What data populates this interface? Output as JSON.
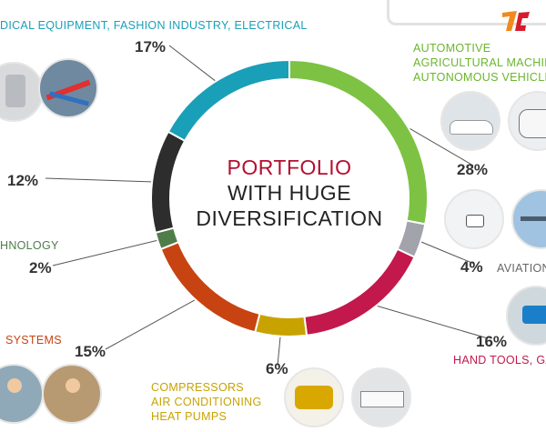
{
  "center_title": {
    "line1": "PORTFOLIO",
    "line2": "WITH HUGE",
    "line3": "DIVERSIFICATION"
  },
  "colors": {
    "accent": "#b3102f",
    "automotive": "#7dc242",
    "aviation": "#a3a3ac",
    "hand_tools": "#c2184c",
    "compressors": "#c8a300",
    "security": "#c84312",
    "technology": "#4f7d4a",
    "electronics": "#2d2d2d",
    "medical": "#1a9fb8"
  },
  "labels": {
    "medical": "DICAL EQUIPMENT, FASHION INDUSTRY, ELECTRICAL",
    "automotive": [
      "AUTOMOTIVE",
      "AGRICULTURAL MACHIN",
      "AUTONOMOUS VEHICLE"
    ],
    "aviation": "AVIATION",
    "hand_tools": "HAND TOOLS, GA",
    "compressors": [
      "COMPRESSORS",
      "AIR CONDITIONING",
      "HEAT PUMPS"
    ],
    "security": "SYSTEMS",
    "technology": "HNOLOGY"
  },
  "percent_labels": {
    "automotive": "28%",
    "aviation": "4%",
    "hand_tools": "16%",
    "compressors": "6%",
    "security": "15%",
    "technology": "2%",
    "electronics": "12%",
    "medical": "17%"
  },
  "chart_data": {
    "type": "pie",
    "donut": true,
    "title": "PORTFOLIO WITH HUGE DIVERSIFICATION",
    "categories": [
      "AUTOMOTIVE AGRICULTURAL MACHIN AUTONOMOUS VEHICLE",
      "AVIATION",
      "HAND TOOLS, GA",
      "COMPRESSORS AIR CONDITIONING HEAT PUMPS",
      "SYSTEMS",
      "HNOLOGY",
      "",
      "DICAL EQUIPMENT, FASHION INDUSTRY, ELECTRICAL"
    ],
    "values": [
      28,
      4,
      16,
      6,
      15,
      2,
      12,
      17
    ],
    "colors": [
      "#7dc242",
      "#a3a3ac",
      "#c2184c",
      "#c8a300",
      "#c84312",
      "#4f7d4a",
      "#2d2d2d",
      "#1a9fb8"
    ],
    "start_angle_deg": 0,
    "direction": "clockwise"
  }
}
